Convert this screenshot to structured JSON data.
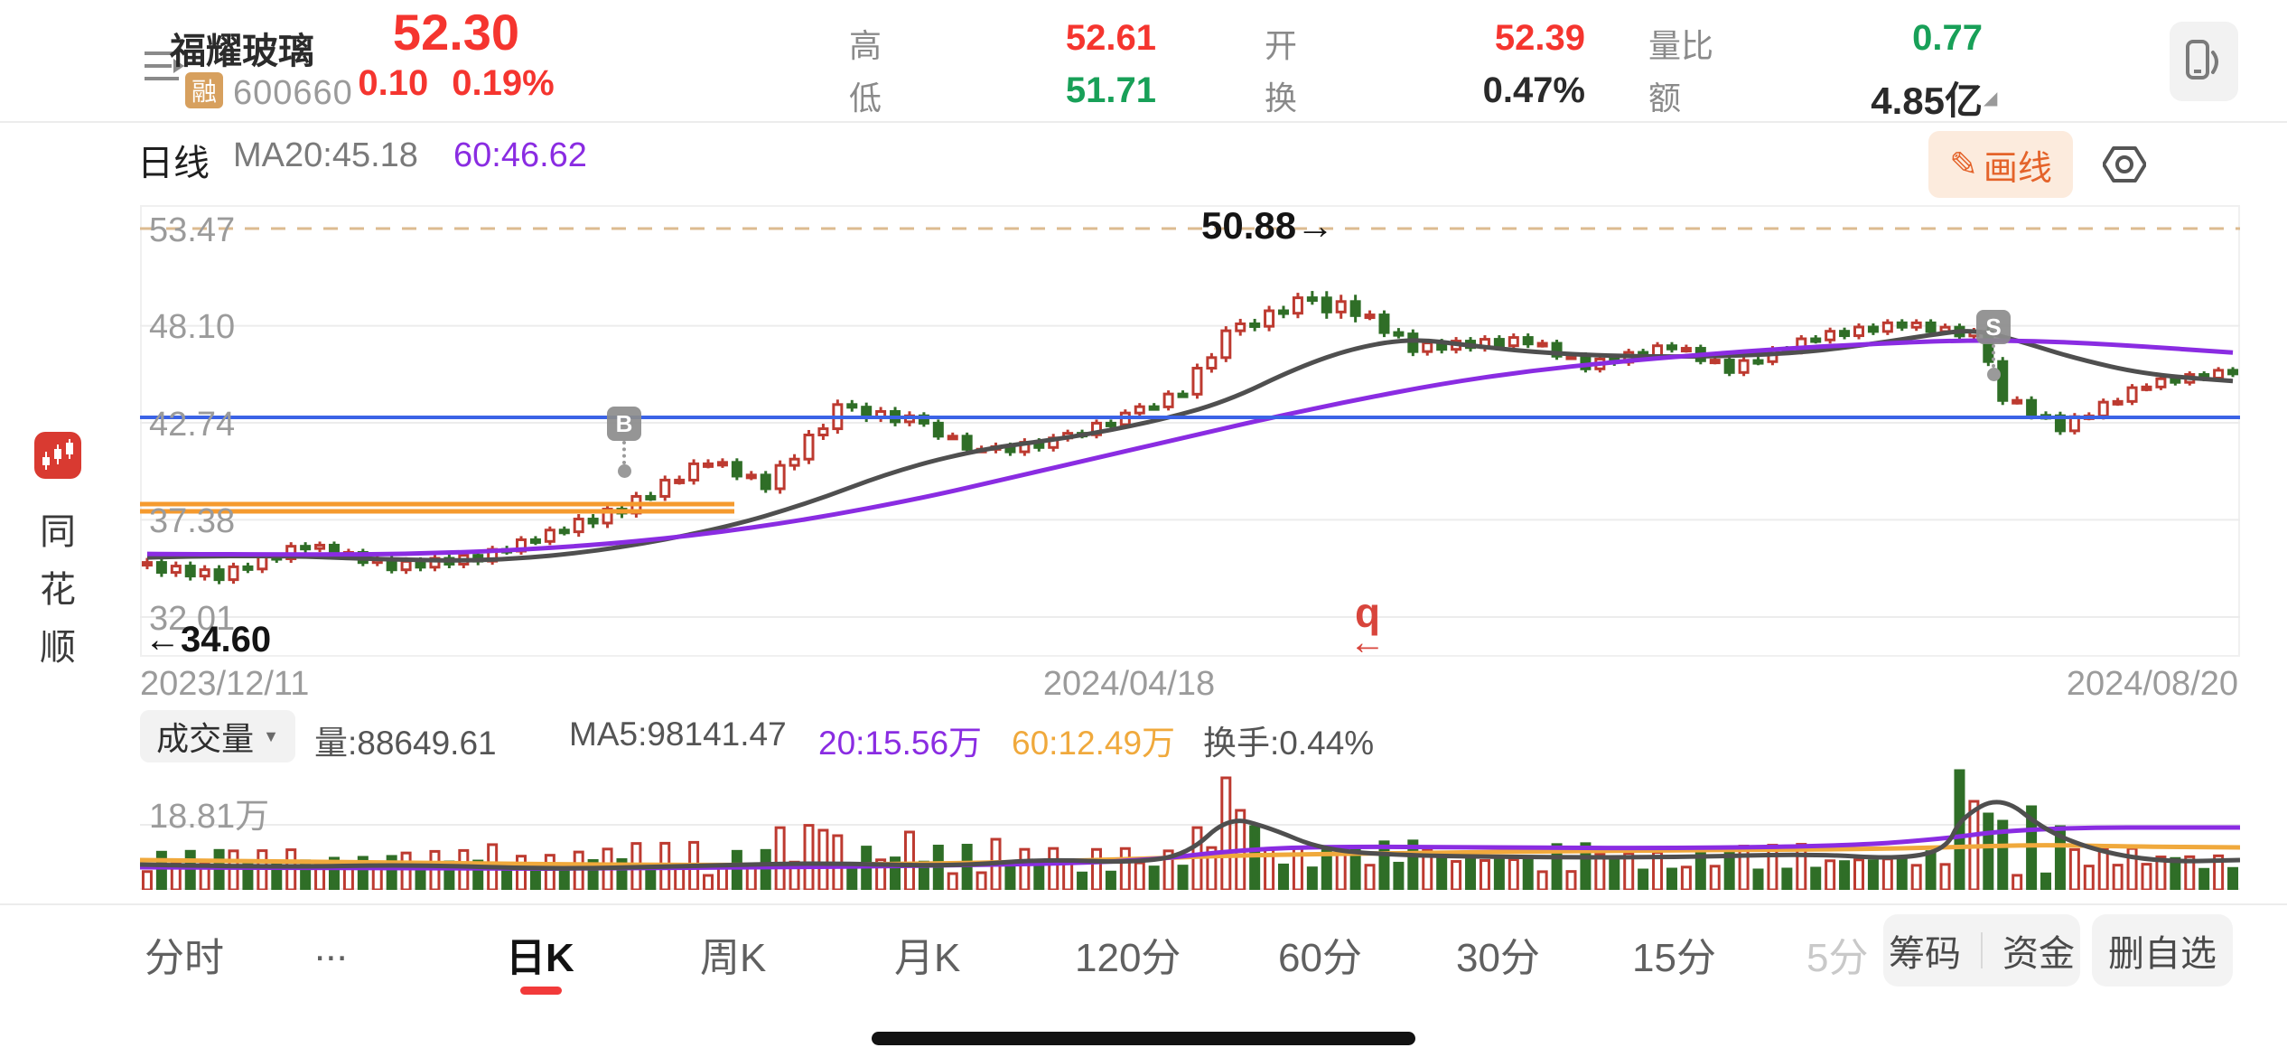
{
  "header": {
    "stock_name": "福耀玻璃",
    "margin_badge": "融",
    "stock_code": "600660",
    "last_price": "52.30",
    "change": "0.10",
    "change_pct": "0.19%",
    "fields": {
      "high_label": "高",
      "high_value": "52.61",
      "low_label": "低",
      "low_value": "51.71",
      "open_label": "开",
      "open_value": "52.39",
      "turnover_label": "换",
      "turnover_value": "0.47%",
      "volume_ratio_label": "量比",
      "volume_ratio_value": "0.77",
      "amount_label": "额",
      "amount_value": "4.85亿",
      "amount_corner": "◢"
    }
  },
  "chart_header": {
    "period_label": "日线",
    "ma20_label": "MA20:45.18",
    "ma60_label": "60:46.62",
    "draw_icon": "✎",
    "draw_button": "画线"
  },
  "left_rail": {
    "brand_chars": {
      "c0": "同",
      "c1": "花",
      "c2": "顺"
    }
  },
  "main_chart": {
    "y_labels": {
      "t0": "53.47",
      "t1": "48.10",
      "t2": "42.74",
      "t3": "37.38",
      "t4": "32.01"
    },
    "annotation_high": "50.88→",
    "annotation_low": "←34.60",
    "buy_marker": "B",
    "sell_marker": "S",
    "event_marker": "q",
    "event_arrow": "←",
    "x_labels": {
      "d0": "2023/12/11",
      "d1": "2024/04/18",
      "d2": "2024/08/20"
    }
  },
  "volume_pane": {
    "indicator_selector": "成交量",
    "caret": "▼",
    "vol_label": "量:88649.61",
    "ma5_label": "MA5:98141.47",
    "ma20_label": "20:15.56万",
    "ma60_label": "60:12.49万",
    "turnover_label": "换手:0.44%",
    "y_label": "18.81万"
  },
  "tabs": {
    "items": {
      "t0": "分时",
      "t1": "...",
      "t2": "日K",
      "t3": "周K",
      "t4": "月K",
      "t5": "120分",
      "t6": "60分",
      "t7": "30分",
      "t8": "15分",
      "t9": "5分"
    },
    "chips": {
      "c0": "筹码",
      "c1": "资金",
      "c2": "删自选"
    }
  },
  "chart_data": {
    "type": "candlestick+volume",
    "symbol": "600660 福耀玻璃",
    "period": "日线",
    "y_axis": {
      "min": 32.01,
      "max": 53.47,
      "ticks": [
        53.47,
        48.1,
        42.74,
        37.38,
        32.01
      ]
    },
    "x_dates": [
      "2023/12/11",
      "2024/04/18",
      "2024/08/20"
    ],
    "ma20_current": 45.18,
    "ma60_current": 46.62,
    "levels": {
      "dashed_top_price": 53.47,
      "high_note_price": 50.88,
      "low_note_price": 34.6,
      "blue_line_price": 43.04,
      "drawn_orange_price": 38.05,
      "drawn_orange_end_x": 658
    },
    "segments": [
      [
        34.9,
        34.3,
        6,
        0.5
      ],
      [
        34.3,
        36.0,
        6,
        0.45
      ],
      [
        36.0,
        34.8,
        6,
        0.4
      ],
      [
        34.8,
        35.3,
        6,
        0.45
      ],
      [
        35.3,
        36.9,
        6,
        0.4
      ],
      [
        36.9,
        38.0,
        4,
        0.55
      ],
      [
        38.0,
        40.7,
        6,
        0.5
      ],
      [
        40.7,
        39.3,
        4,
        0.45
      ],
      [
        39.3,
        43.5,
        5,
        0.55
      ],
      [
        43.5,
        42.9,
        5,
        0.5
      ],
      [
        42.9,
        41.1,
        5,
        0.4
      ],
      [
        41.1,
        41.7,
        5,
        0.45
      ],
      [
        41.7,
        43.1,
        5,
        0.4
      ],
      [
        43.1,
        44.5,
        4,
        0.4
      ],
      [
        44.5,
        47.6,
        3,
        0.5
      ],
      [
        47.6,
        49.4,
        5,
        0.55
      ],
      [
        49.4,
        49.0,
        4,
        0.75
      ],
      [
        49.0,
        46.9,
        4,
        0.5
      ],
      [
        46.9,
        47.3,
        8,
        0.45
      ],
      [
        47.3,
        45.9,
        4,
        0.4
      ],
      [
        45.9,
        47.0,
        6,
        0.4
      ],
      [
        47.0,
        45.7,
        4,
        0.4
      ],
      [
        45.7,
        47.5,
        6,
        0.4
      ],
      [
        47.5,
        48.2,
        6,
        0.4
      ],
      [
        48.2,
        47.6,
        5,
        0.4
      ],
      [
        47.6,
        44.2,
        2,
        0.5
      ],
      [
        44.2,
        42.5,
        4,
        0.45
      ],
      [
        42.5,
        44.9,
        6,
        0.4
      ],
      [
        44.9,
        45.6,
        6,
        0.35
      ]
    ],
    "ma20_points": [
      [
        0,
        35.3
      ],
      [
        8,
        35.45
      ],
      [
        16,
        35.2
      ],
      [
        24,
        35.1
      ],
      [
        32,
        35.7
      ],
      [
        40,
        36.9
      ],
      [
        46,
        38.3
      ],
      [
        52,
        40.1
      ],
      [
        58,
        41.3
      ],
      [
        64,
        41.9
      ],
      [
        70,
        42.8
      ],
      [
        75,
        43.9
      ],
      [
        80,
        45.8
      ],
      [
        84,
        46.9
      ],
      [
        88,
        47.4
      ],
      [
        92,
        47.0
      ],
      [
        97,
        46.6
      ],
      [
        103,
        46.4
      ],
      [
        109,
        46.4
      ],
      [
        115,
        46.6
      ],
      [
        120,
        47.1
      ],
      [
        124,
        47.6
      ],
      [
        127,
        47.9
      ],
      [
        130,
        47.3
      ],
      [
        134,
        46.3
      ],
      [
        139,
        45.4
      ],
      [
        145,
        45.05
      ]
    ],
    "ma60_points": [
      [
        0,
        35.5
      ],
      [
        10,
        35.45
      ],
      [
        20,
        35.5
      ],
      [
        30,
        35.9
      ],
      [
        38,
        36.5
      ],
      [
        46,
        37.4
      ],
      [
        54,
        38.6
      ],
      [
        60,
        39.7
      ],
      [
        66,
        40.8
      ],
      [
        72,
        41.9
      ],
      [
        78,
        43.0
      ],
      [
        84,
        44.0
      ],
      [
        90,
        44.9
      ],
      [
        96,
        45.6
      ],
      [
        102,
        46.1
      ],
      [
        108,
        46.5
      ],
      [
        114,
        46.85
      ],
      [
        120,
        47.1
      ],
      [
        126,
        47.3
      ],
      [
        132,
        47.25
      ],
      [
        138,
        47.0
      ],
      [
        145,
        46.62
      ]
    ],
    "volume": {
      "current": 88649.61,
      "ma5": 98141.47,
      "ma20_wan": 15.56,
      "ma60_wan": 12.49,
      "turnover_pct": 0.44,
      "y_tick_wan": 18.81,
      "overrides": {
        "47": 66,
        "48": 60,
        "53": 64,
        "59": 56,
        "75": 124,
        "76": 88,
        "77": 70,
        "126": 132,
        "127": 98,
        "128": 84,
        "129": 76,
        "131": 92,
        "133": 70
      },
      "ma5_points": [
        [
          0,
          109
        ],
        [
          150,
          112
        ],
        [
          300,
          109
        ],
        [
          450,
          114
        ],
        [
          600,
          111
        ],
        [
          750,
          107
        ],
        [
          900,
          111
        ],
        [
          1000,
          103
        ],
        [
          1100,
          107
        ],
        [
          1160,
          98
        ],
        [
          1205,
          56
        ],
        [
          1250,
          68
        ],
        [
          1310,
          93
        ],
        [
          1400,
          99
        ],
        [
          1550,
          101
        ],
        [
          1700,
          101
        ],
        [
          1850,
          97
        ],
        [
          1950,
          103
        ],
        [
          2000,
          92
        ],
        [
          2015,
          58
        ],
        [
          2060,
          32
        ],
        [
          2110,
          72
        ],
        [
          2170,
          95
        ],
        [
          2240,
          106
        ],
        [
          2325,
          104
        ]
      ],
      "ma20_points": [
        [
          0,
          112
        ],
        [
          300,
          114
        ],
        [
          600,
          113
        ],
        [
          900,
          110
        ],
        [
          1100,
          106
        ],
        [
          1205,
          94
        ],
        [
          1300,
          89
        ],
        [
          1500,
          90
        ],
        [
          1700,
          91
        ],
        [
          1900,
          88
        ],
        [
          2000,
          80
        ],
        [
          2060,
          72
        ],
        [
          2150,
          68
        ],
        [
          2250,
          68
        ],
        [
          2325,
          68
        ]
      ],
      "ma60_points": [
        [
          0,
          104
        ],
        [
          300,
          107
        ],
        [
          600,
          110
        ],
        [
          900,
          108
        ],
        [
          1100,
          103
        ],
        [
          1205,
          99
        ],
        [
          1400,
          96
        ],
        [
          1700,
          93
        ],
        [
          1900,
          92
        ],
        [
          2000,
          90
        ],
        [
          2100,
          87
        ],
        [
          2200,
          89
        ],
        [
          2325,
          90
        ]
      ]
    },
    "colors": {
      "up": "#bd3a30",
      "down": "#2f6e27",
      "ma20": "#4f4f4f",
      "ma60": "#8a2ce2",
      "blue_line": "#3b63e6",
      "dashed": "#dcbb90",
      "drawn_orange": "#f59a2e",
      "grid": "#ececec",
      "vol_ma5": "#4f4f4f",
      "vol_ma20": "#8a2ce2",
      "vol_ma60": "#f0a93c"
    }
  }
}
